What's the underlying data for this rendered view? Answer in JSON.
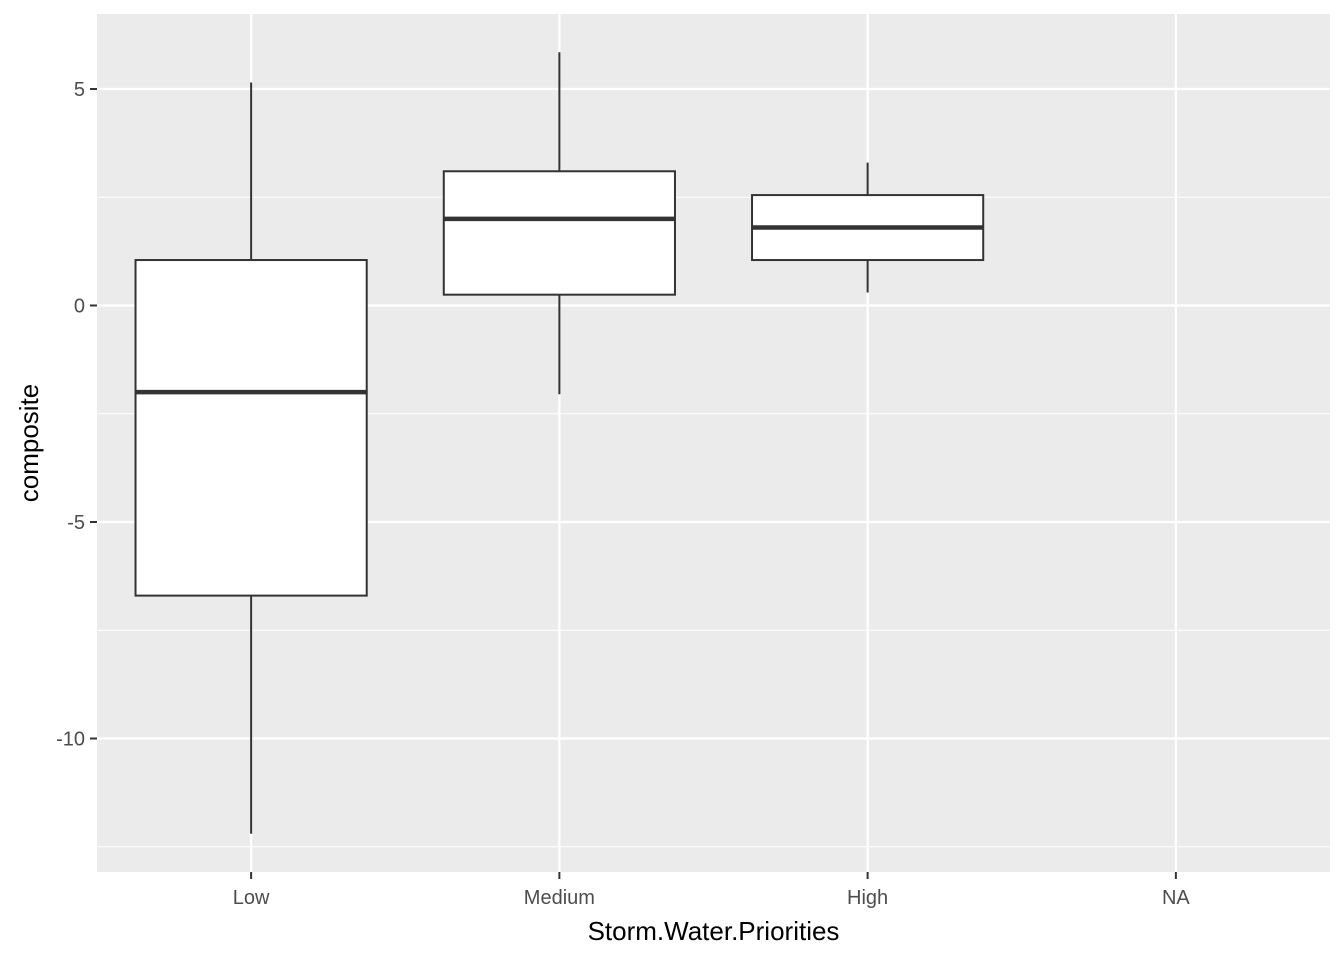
{
  "chart_data": {
    "type": "box",
    "xlabel": "Storm.Water.Priorities",
    "ylabel": "composite",
    "categories": [
      "Low",
      "Medium",
      "High",
      "NA"
    ],
    "y_ticks": [
      5,
      0,
      -5,
      -10
    ],
    "y_tick_labels": [
      "5",
      "0",
      "-5",
      "-10"
    ],
    "ylim": [
      -13.0,
      6.8
    ],
    "grid": true,
    "boxes": [
      {
        "category": "Low",
        "whisker_low": -12.2,
        "q1": -6.7,
        "median": -2.0,
        "q3": 1.05,
        "whisker_high": 5.15
      },
      {
        "category": "Medium",
        "whisker_low": -2.05,
        "q1": 0.25,
        "median": 2.0,
        "q3": 3.1,
        "whisker_high": 5.85
      },
      {
        "category": "High",
        "whisker_low": 0.3,
        "q1": 1.05,
        "median": 1.8,
        "q3": 2.55,
        "whisker_high": 3.3
      }
    ],
    "colors": {
      "panel": "#ebebeb",
      "grid_major": "#ffffff",
      "box_fill": "#ffffff",
      "box_line": "#333333"
    }
  }
}
